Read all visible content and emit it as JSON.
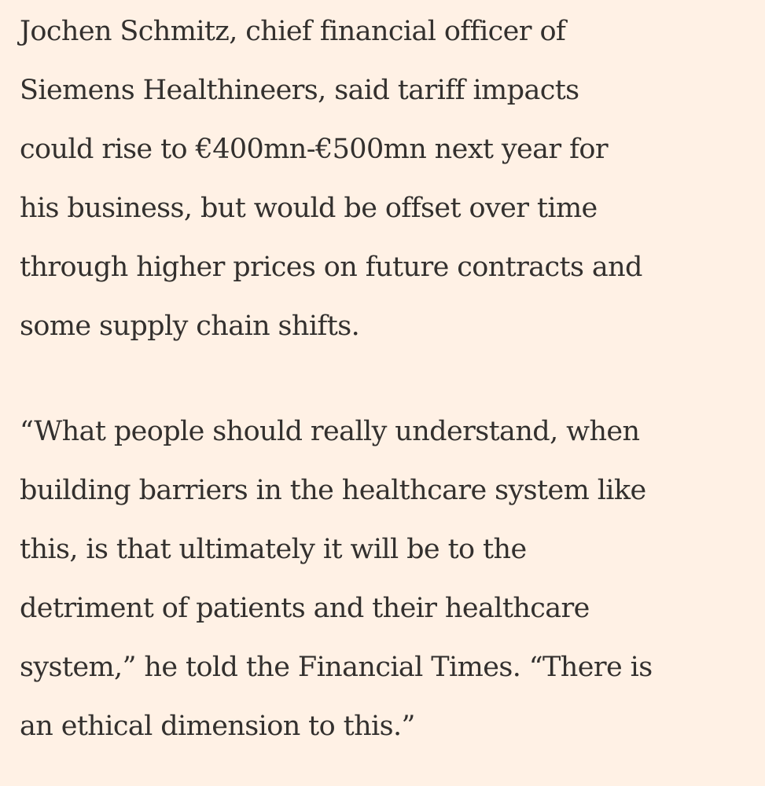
{
  "article": {
    "paragraphs": [
      {
        "lines": [
          "Jochen Schmitz, chief financial officer of",
          "Siemens Healthineers, said tariff impacts",
          "could rise to €400mn-€500mn next year for",
          "his business, but would be offset over time",
          "through higher prices on future contracts and",
          "some supply chain shifts."
        ]
      },
      {
        "lines": [
          "“What people should really understand, when",
          "building barriers in the healthcare system like",
          "this, is that ultimately it will be to the",
          "detriment of patients and their healthcare",
          "system,” he told the Financial Times. “There is",
          "an ethical dimension to this.”"
        ]
      }
    ]
  }
}
